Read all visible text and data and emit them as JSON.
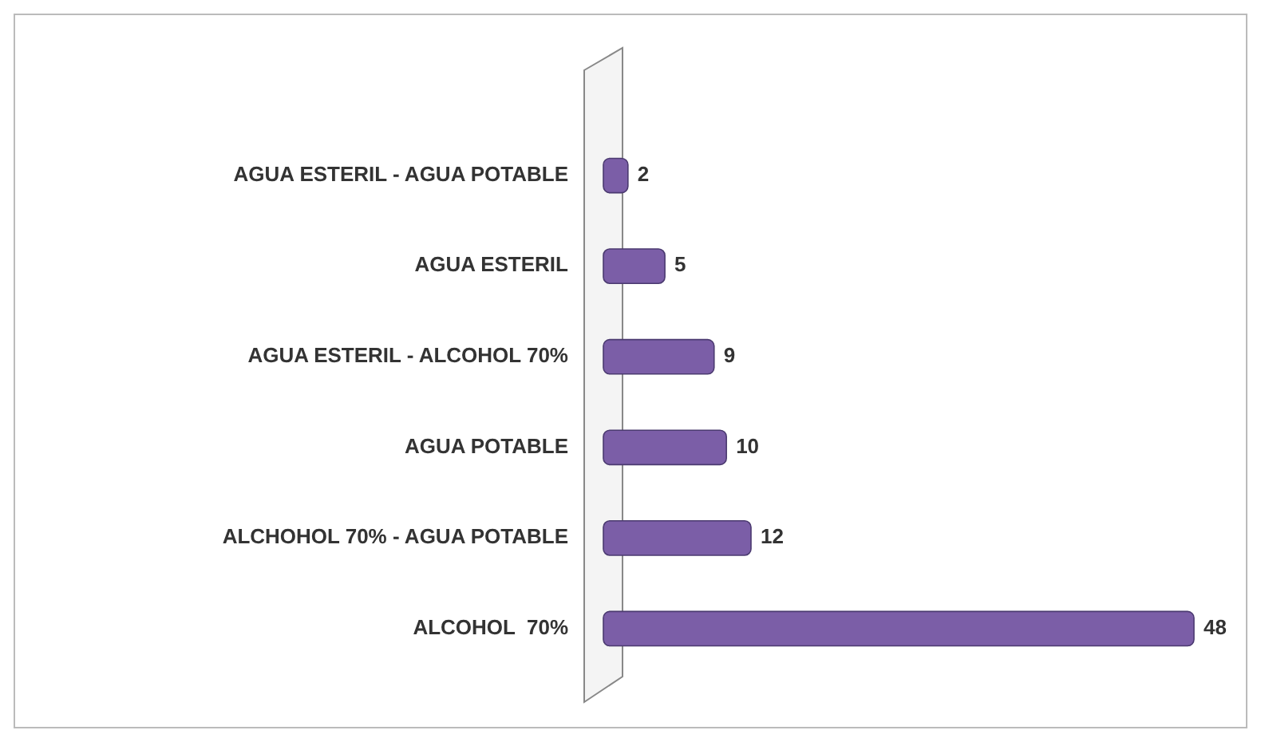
{
  "chart_data": {
    "type": "bar",
    "orientation": "horizontal",
    "categories": [
      "AGUA ESTERIL - AGUA POTABLE",
      "AGUA ESTERIL",
      "AGUA ESTERIL - ALCOHOL 70%",
      "AGUA POTABLE",
      "ALCHOHOL 70% - AGUA POTABLE",
      "ALCOHOL  70%"
    ],
    "values": [
      2,
      5,
      9,
      10,
      12,
      48
    ],
    "color": "#7b5ea7",
    "data_labels": true
  }
}
